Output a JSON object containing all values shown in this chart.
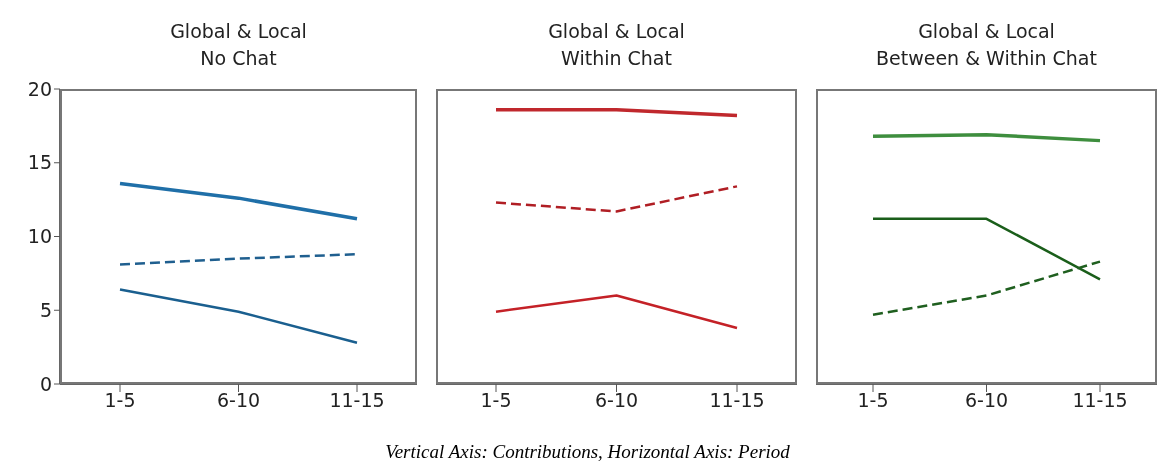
{
  "chart_data": [
    {
      "type": "line",
      "title": "Global & Local",
      "subtitle": "No Chat",
      "categories": [
        "1-5",
        "6-10",
        "11-15"
      ],
      "ylim": [
        0,
        20
      ],
      "yticks": [
        0,
        5,
        10,
        15,
        20
      ],
      "grid": false,
      "legend": false,
      "marker": "none",
      "annotations": [
        "Vertical Axis: Contributions, Horizontal Axis: Period"
      ],
      "series": [
        {
          "color": "#1f6fa8",
          "values": [
            13.6,
            12.6,
            11.2
          ],
          "line_style": "solid"
        },
        {
          "color": "#1f5f8f",
          "values": [
            8.1,
            8.5,
            8.8
          ],
          "line_style": "dashed"
        },
        {
          "color": "#1a5f8f",
          "values": [
            6.4,
            4.9,
            2.8
          ],
          "line_style": "solid"
        }
      ]
    },
    {
      "type": "line",
      "title": "Global & Local",
      "subtitle": "Within Chat",
      "categories": [
        "1-5",
        "6-10",
        "11-15"
      ],
      "ylim": [
        0,
        20
      ],
      "tick_labels": "x",
      "grid": false,
      "legend": false,
      "marker": "none",
      "series": [
        {
          "color": "#c0282d",
          "values": [
            18.6,
            18.6,
            18.2
          ],
          "line_style": "solid"
        },
        {
          "color": "#b01e24",
          "values": [
            12.3,
            11.7,
            13.4
          ],
          "line_style": "dashed"
        },
        {
          "color": "#c42127",
          "values": [
            4.9,
            6.0,
            3.8
          ],
          "line_style": "solid"
        }
      ]
    },
    {
      "type": "line",
      "title": "Global & Local",
      "subtitle": "Between & Within Chat",
      "categories": [
        "1-5",
        "6-10",
        "11-15"
      ],
      "ylim": [
        0,
        20
      ],
      "tick_labels": "x",
      "grid": false,
      "legend": false,
      "marker": "none",
      "series": [
        {
          "color": "#3e8e3e",
          "values": [
            16.8,
            16.9,
            16.5
          ],
          "line_style": "solid"
        },
        {
          "color": "#1a5e1a",
          "values": [
            11.2,
            11.2,
            7.1
          ],
          "line_style": "solid"
        },
        {
          "color": "#1f5f1f",
          "values": [
            4.7,
            6.0,
            8.3
          ],
          "line_style": "dashed"
        }
      ]
    }
  ]
}
